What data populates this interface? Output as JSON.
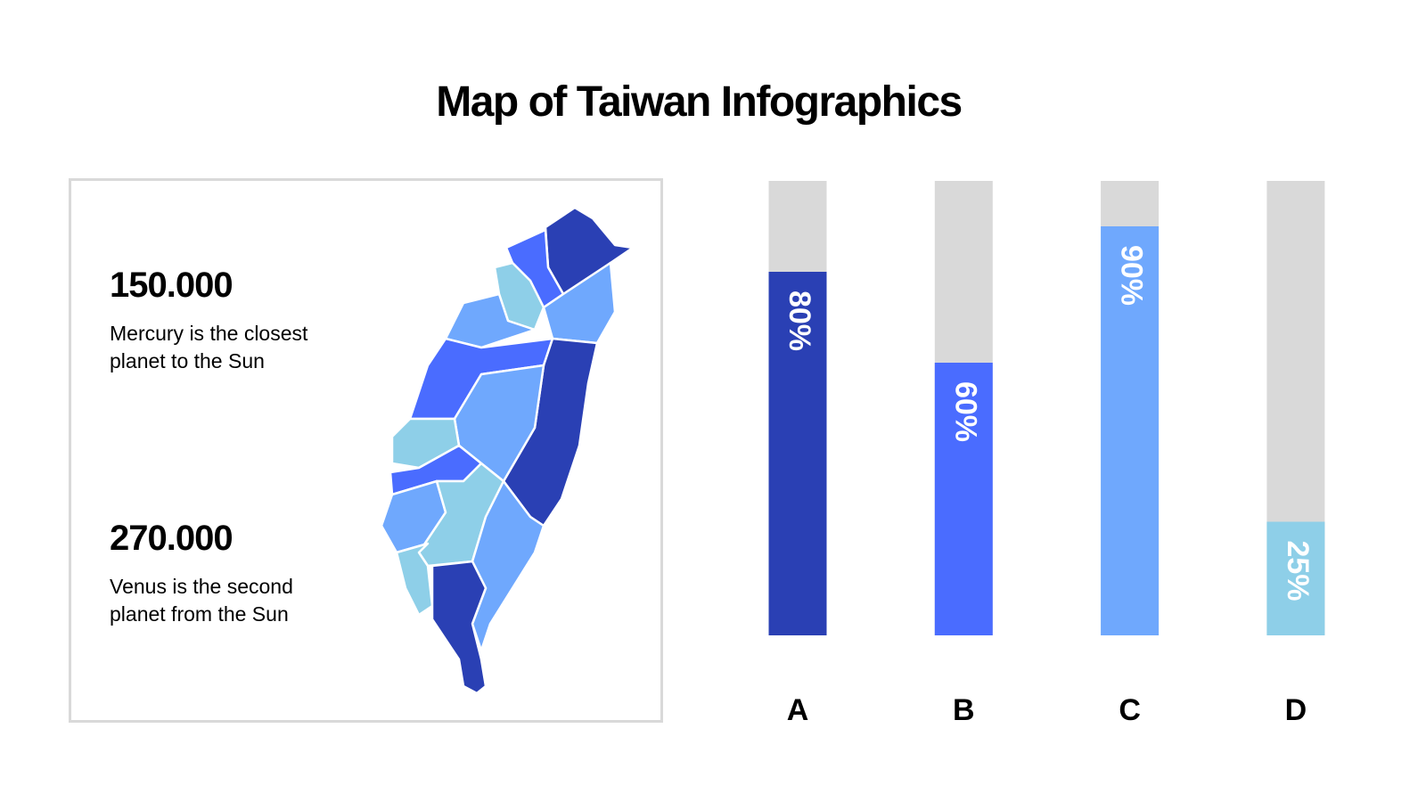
{
  "title": "Map of Taiwan Infographics",
  "stats": [
    {
      "value": "150.000",
      "text": [
        "Mercury is the closest",
        "planet to the Sun"
      ]
    },
    {
      "value": "270.000",
      "text": [
        "Venus is the second",
        "planet from the Sun"
      ]
    }
  ],
  "chart_data": {
    "type": "bar",
    "categories": [
      "A",
      "B",
      "C",
      "D"
    ],
    "values": [
      80,
      60,
      90,
      25
    ],
    "value_labels": [
      "80%",
      "60%",
      "90%",
      "25%"
    ],
    "colors": [
      "#2a40b4",
      "#4a6cff",
      "#6fa8fd",
      "#8ecfe8"
    ],
    "track_color": "#d9d9d9",
    "ylim": [
      0,
      100
    ]
  }
}
